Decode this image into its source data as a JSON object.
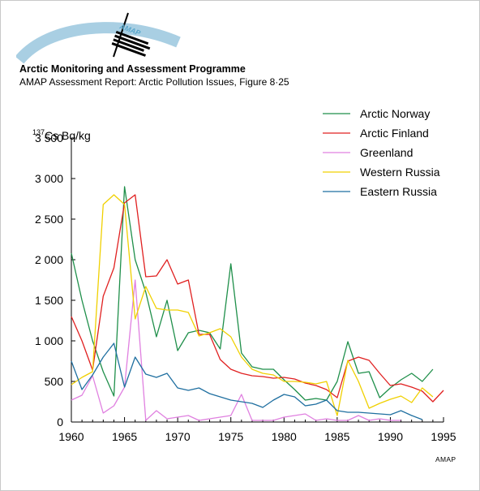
{
  "header": {
    "logo_text": "AMAP",
    "title": "Arctic Monitoring and Assessment Programme",
    "subtitle": "AMAP Assessment Report: Arctic Pollution Issues, Figure 8·25"
  },
  "credit": "AMAP",
  "chart_data": {
    "type": "line",
    "title": "",
    "xlabel": "",
    "ylabel_superscript": "137",
    "ylabel": "Cs Bq/kg",
    "xlim": [
      1960,
      1995
    ],
    "ylim": [
      0,
      3500
    ],
    "x_ticks": [
      1960,
      1965,
      1970,
      1975,
      1980,
      1985,
      1990,
      1995
    ],
    "y_ticks": [
      0,
      500,
      1000,
      1500,
      2000,
      2500,
      3000,
      3500
    ],
    "y_tick_labels": [
      "0",
      "500",
      "1 000",
      "1 500",
      "2 000",
      "2 500",
      "3 000",
      "3 500"
    ],
    "grid": false,
    "legend_position": "top-right",
    "series": [
      {
        "name": "Arctic Norway",
        "color": "#1f8f4a",
        "x": [
          1960,
          1961,
          1962,
          1963,
          1964,
          1965,
          1966,
          1967,
          1968,
          1969,
          1970,
          1971,
          1972,
          1973,
          1974,
          1975,
          1976,
          1977,
          1978,
          1979,
          1980,
          1981,
          1982,
          1983,
          1984,
          1985,
          1986,
          1987,
          1988,
          1989,
          1990,
          1991,
          1992,
          1993,
          1994
        ],
        "values": [
          2080,
          1500,
          1000,
          620,
          320,
          2900,
          2000,
          1600,
          1050,
          1500,
          880,
          1100,
          1130,
          1100,
          900,
          1950,
          850,
          680,
          650,
          650,
          520,
          400,
          270,
          290,
          270,
          500,
          990,
          600,
          620,
          300,
          420,
          520,
          600,
          500,
          650
        ]
      },
      {
        "name": "Arctic Finland",
        "color": "#e02020",
        "x": [
          1960,
          1961,
          1962,
          1963,
          1964,
          1965,
          1966,
          1967,
          1968,
          1969,
          1970,
          1971,
          1972,
          1973,
          1974,
          1975,
          1976,
          1977,
          1978,
          1979,
          1980,
          1981,
          1982,
          1983,
          1984,
          1985,
          1986,
          1987,
          1988,
          1989,
          1990,
          1991,
          1992,
          1993,
          1994,
          1995
        ],
        "values": [
          1300,
          1000,
          640,
          1550,
          1900,
          2700,
          2800,
          1790,
          1800,
          2000,
          1700,
          1750,
          1080,
          1080,
          770,
          650,
          600,
          570,
          560,
          540,
          550,
          530,
          480,
          450,
          400,
          300,
          750,
          800,
          760,
          600,
          450,
          470,
          430,
          380,
          250,
          390
        ]
      },
      {
        "name": "Greenland",
        "color": "#e080e0",
        "x": [
          1960,
          1961,
          1962,
          1963,
          1964,
          1965,
          1966,
          1967,
          1968,
          1969,
          1970,
          1971,
          1972,
          1973,
          1974,
          1975,
          1976,
          1977,
          1978,
          1979,
          1980,
          1981,
          1982,
          1983,
          1984,
          1985,
          1986,
          1987,
          1988,
          1989,
          1990,
          1991
        ],
        "values": [
          270,
          330,
          570,
          110,
          200,
          430,
          1750,
          20,
          140,
          40,
          60,
          80,
          20,
          40,
          60,
          80,
          340,
          20,
          20,
          20,
          60,
          80,
          100,
          20,
          40,
          20,
          20,
          80,
          20,
          40,
          20,
          20
        ]
      },
      {
        "name": "Western Russia",
        "color": "#f0d000",
        "x": [
          1960,
          1961,
          1962,
          1963,
          1964,
          1965,
          1966,
          1967,
          1968,
          1969,
          1970,
          1971,
          1972,
          1973,
          1974,
          1975,
          1976,
          1977,
          1978,
          1979,
          1980,
          1981,
          1982,
          1983,
          1984,
          1985,
          1986,
          1987,
          1988,
          1989,
          1990,
          1991,
          1992,
          1993,
          1994
        ],
        "values": [
          460,
          550,
          620,
          2680,
          2800,
          2680,
          1270,
          1670,
          1400,
          1380,
          1380,
          1350,
          1060,
          1100,
          1150,
          1050,
          800,
          650,
          600,
          580,
          500,
          500,
          490,
          470,
          500,
          80,
          760,
          500,
          170,
          230,
          280,
          320,
          240,
          420,
          310
        ]
      },
      {
        "name": "Eastern Russia",
        "color": "#1f6fa0",
        "x": [
          1960,
          1961,
          1962,
          1963,
          1964,
          1965,
          1966,
          1967,
          1968,
          1969,
          1970,
          1971,
          1972,
          1973,
          1974,
          1975,
          1976,
          1977,
          1978,
          1979,
          1980,
          1981,
          1982,
          1983,
          1984,
          1985,
          1986,
          1987,
          1988,
          1989,
          1990,
          1991,
          1992,
          1993
        ],
        "values": [
          750,
          400,
          580,
          800,
          970,
          430,
          800,
          590,
          550,
          600,
          420,
          390,
          420,
          350,
          310,
          270,
          250,
          230,
          180,
          270,
          340,
          310,
          200,
          220,
          270,
          140,
          120,
          120,
          110,
          100,
          90,
          140,
          80,
          30
        ]
      }
    ]
  }
}
